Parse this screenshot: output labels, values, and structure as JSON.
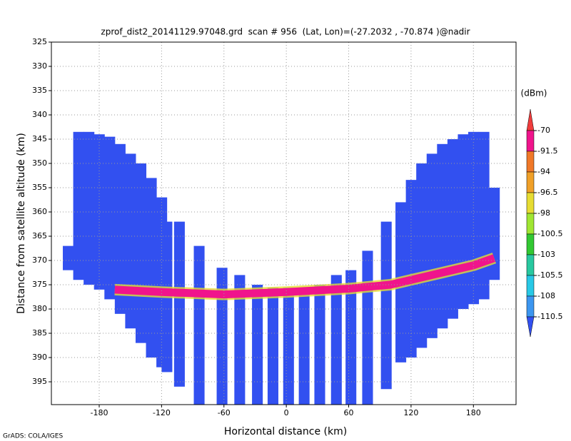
{
  "chart_data": {
    "type": "profile",
    "title": "zprof_dist2_20141129.97048.grd  scan # 956  (Lat, Lon)=(-27.2032 , -70.874 )@nadir",
    "xlabel": "Horizontal distance (km)",
    "ylabel": "Distance from satellite altitude (km)",
    "credit": "GrADS: COLA/IGES",
    "xlim": [
      -226,
      221
    ],
    "xticks": [
      -180,
      -120,
      -60,
      0,
      60,
      120,
      180
    ],
    "ylim": [
      325,
      399.7
    ],
    "yticks": [
      325,
      330,
      335,
      340,
      345,
      350,
      355,
      360,
      365,
      370,
      375,
      380,
      385,
      390,
      395
    ],
    "y_inverted": true,
    "grid": true,
    "columns": {
      "color": "#3250f0",
      "x": [
        -210,
        -200,
        -190,
        -180,
        -170,
        -160,
        -150,
        -140,
        -130,
        -120,
        -115,
        -103,
        -84,
        -62,
        -45,
        -28,
        -13,
        2,
        17,
        32,
        48,
        62,
        78,
        96,
        110,
        120,
        130,
        140,
        150,
        160,
        170,
        180,
        190,
        200
      ],
      "top": [
        367,
        343.5,
        343.5,
        344,
        344.5,
        346,
        348,
        350,
        353,
        357,
        362,
        362,
        367,
        371.5,
        373,
        375,
        375.6,
        375.6,
        376,
        375,
        373,
        372,
        368,
        362,
        358,
        353.4,
        350,
        348,
        346,
        345,
        344,
        343.5,
        343.5,
        355
      ],
      "bottom": [
        372,
        374,
        375,
        376,
        378,
        381,
        384,
        387,
        390,
        392,
        393,
        396,
        399.7,
        399.7,
        399.7,
        399.7,
        399.7,
        399.7,
        399.7,
        399.7,
        399.7,
        399.7,
        399.7,
        396.5,
        391,
        390,
        388,
        386,
        384,
        382,
        380,
        379,
        378,
        374
      ]
    },
    "surface": {
      "color": "#f0148c",
      "x": [
        -165,
        -120,
        -60,
        0,
        60,
        100,
        120,
        150,
        180,
        200
      ],
      "y": [
        376,
        376.5,
        377,
        376.5,
        375.8,
        375,
        374,
        372.5,
        371,
        369.5
      ]
    },
    "colorbar": {
      "unit": "(dBm)",
      "levels": [
        -70,
        -91.5,
        -94,
        -96.5,
        -98,
        -100.5,
        -103,
        -105.5,
        -108,
        -110.5
      ],
      "colors": [
        "#f03c3c",
        "#f0148c",
        "#f07828",
        "#f0a028",
        "#e6dc32",
        "#a0e632",
        "#32c832",
        "#28c8a0",
        "#28c8e6",
        "#3c96f0",
        "#3250f0"
      ]
    }
  }
}
